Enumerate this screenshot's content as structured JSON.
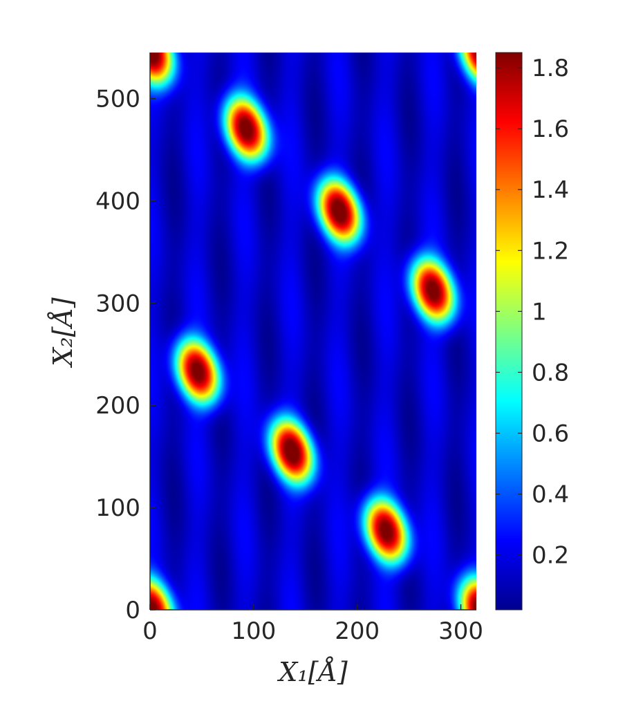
{
  "chart_data": {
    "type": "heatmap",
    "title": "",
    "xlabel": "X₁[Å]",
    "ylabel": "X₂[Å]",
    "xlim": [
      0,
      315
    ],
    "ylim": [
      0,
      545
    ],
    "x_ticks": [
      0,
      100,
      200,
      300
    ],
    "y_ticks": [
      0,
      100,
      200,
      300,
      400,
      500
    ],
    "colorbar": {
      "colormap": "jet",
      "range": [
        0.02,
        1.85
      ],
      "ticks": [
        0.2,
        0.4,
        0.6,
        0.8,
        1,
        1.2,
        1.4,
        1.6,
        1.8
      ]
    },
    "background_value": 0.15,
    "peaks": [
      {
        "x": 93,
        "y": 470,
        "value": 1.85
      },
      {
        "x": 183,
        "y": 390,
        "value": 1.85
      },
      {
        "x": 273,
        "y": 312,
        "value": 1.85
      },
      {
        "x": 46,
        "y": 233,
        "value": 1.85
      },
      {
        "x": 137,
        "y": 155,
        "value": 1.85
      },
      {
        "x": 228,
        "y": 77,
        "value": 1.85
      },
      {
        "x": 2,
        "y": 545,
        "value": 1.85
      },
      {
        "x": 320,
        "y": 545,
        "value": 1.85
      },
      {
        "x": 2,
        "y": 0,
        "value": 1.85
      },
      {
        "x": 320,
        "y": 0,
        "value": 1.85
      }
    ],
    "grid": false,
    "legend": "colorbar-right"
  }
}
